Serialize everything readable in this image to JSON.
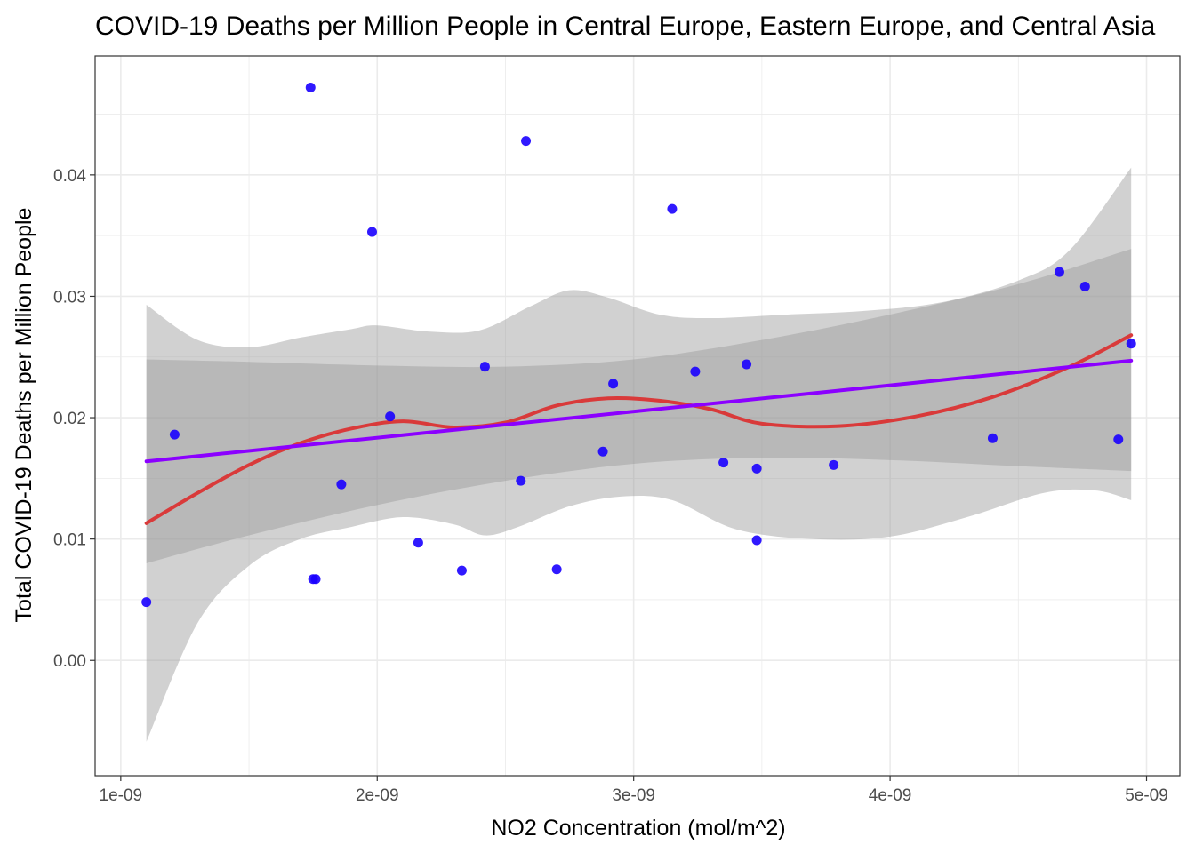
{
  "chart_data": {
    "type": "scatter",
    "title": "COVID-19 Deaths per Million People in Central Europe, Eastern Europe, and Central Asia",
    "xlabel": "NO2 Concentration (mol/m^2)",
    "ylabel": "Total COVID-19 Deaths per Million People",
    "xlim": [
      9e-10,
      5.13e-09
    ],
    "ylim": [
      -0.0095,
      0.0498
    ],
    "x_ticks": [
      1e-09,
      2e-09,
      3e-09,
      4e-09,
      5e-09
    ],
    "x_tick_labels": [
      "1e-09",
      "2e-09",
      "3e-09",
      "4e-09",
      "5e-09"
    ],
    "y_ticks": [
      0.0,
      0.01,
      0.02,
      0.03,
      0.04
    ],
    "y_tick_labels": [
      "0.00",
      "0.01",
      "0.02",
      "0.03",
      "0.04"
    ],
    "grid": true,
    "colors": {
      "points": "#1a00ff",
      "linear_fit": "#8b00ff",
      "loess_fit": "#d93a3a",
      "ribbon": "#999999",
      "grid_major": "#ebebeb",
      "panel_border": "#333333"
    },
    "points": [
      {
        "x": 1.1e-09,
        "y": 0.0048
      },
      {
        "x": 1.21e-09,
        "y": 0.0186
      },
      {
        "x": 1.74e-09,
        "y": 0.0472
      },
      {
        "x": 1.75e-09,
        "y": 0.0067
      },
      {
        "x": 1.76e-09,
        "y": 0.0067
      },
      {
        "x": 1.86e-09,
        "y": 0.0145
      },
      {
        "x": 1.98e-09,
        "y": 0.0353
      },
      {
        "x": 2.05e-09,
        "y": 0.0201
      },
      {
        "x": 2.16e-09,
        "y": 0.0097
      },
      {
        "x": 2.33e-09,
        "y": 0.0074
      },
      {
        "x": 2.42e-09,
        "y": 0.0242
      },
      {
        "x": 2.56e-09,
        "y": 0.0148
      },
      {
        "x": 2.58e-09,
        "y": 0.0428
      },
      {
        "x": 2.7e-09,
        "y": 0.0075
      },
      {
        "x": 2.88e-09,
        "y": 0.0172
      },
      {
        "x": 2.92e-09,
        "y": 0.0228
      },
      {
        "x": 3.15e-09,
        "y": 0.0372
      },
      {
        "x": 3.24e-09,
        "y": 0.0238
      },
      {
        "x": 3.35e-09,
        "y": 0.0163
      },
      {
        "x": 3.44e-09,
        "y": 0.0244
      },
      {
        "x": 3.48e-09,
        "y": 0.0158
      },
      {
        "x": 3.48e-09,
        "y": 0.0099
      },
      {
        "x": 3.78e-09,
        "y": 0.0161
      },
      {
        "x": 4.4e-09,
        "y": 0.0183
      },
      {
        "x": 4.66e-09,
        "y": 0.032
      },
      {
        "x": 4.76e-09,
        "y": 0.0308
      },
      {
        "x": 4.89e-09,
        "y": 0.0182
      },
      {
        "x": 4.94e-09,
        "y": 0.0261
      }
    ],
    "linear_fit": {
      "line": [
        {
          "x": 1.1e-09,
          "y": 0.0164
        },
        {
          "x": 4.94e-09,
          "y": 0.0247
        }
      ],
      "upper": [
        {
          "x": 1.1e-09,
          "y": 0.0248
        },
        {
          "x": 1.5e-09,
          "y": 0.0246
        },
        {
          "x": 2e-09,
          "y": 0.0243
        },
        {
          "x": 2.5e-09,
          "y": 0.0242
        },
        {
          "x": 3e-09,
          "y": 0.0248
        },
        {
          "x": 3.5e-09,
          "y": 0.0264
        },
        {
          "x": 4e-09,
          "y": 0.0285
        },
        {
          "x": 4.5e-09,
          "y": 0.031
        },
        {
          "x": 4.94e-09,
          "y": 0.0339
        }
      ],
      "lower": [
        {
          "x": 1.1e-09,
          "y": 0.008
        },
        {
          "x": 1.5e-09,
          "y": 0.0103
        },
        {
          "x": 2e-09,
          "y": 0.0128
        },
        {
          "x": 2.5e-09,
          "y": 0.0148
        },
        {
          "x": 3e-09,
          "y": 0.0162
        },
        {
          "x": 3.5e-09,
          "y": 0.0167
        },
        {
          "x": 4e-09,
          "y": 0.0165
        },
        {
          "x": 4.5e-09,
          "y": 0.016
        },
        {
          "x": 4.94e-09,
          "y": 0.0156
        }
      ]
    },
    "loess_fit": {
      "line": [
        {
          "x": 1.1e-09,
          "y": 0.0113
        },
        {
          "x": 1.3e-09,
          "y": 0.0138
        },
        {
          "x": 1.5e-09,
          "y": 0.0161
        },
        {
          "x": 1.7e-09,
          "y": 0.0179
        },
        {
          "x": 1.9e-09,
          "y": 0.0191
        },
        {
          "x": 2.1e-09,
          "y": 0.0197
        },
        {
          "x": 2.3e-09,
          "y": 0.0192
        },
        {
          "x": 2.5e-09,
          "y": 0.0196
        },
        {
          "x": 2.7e-09,
          "y": 0.021
        },
        {
          "x": 2.9e-09,
          "y": 0.0216
        },
        {
          "x": 3.1e-09,
          "y": 0.0214
        },
        {
          "x": 3.3e-09,
          "y": 0.0207
        },
        {
          "x": 3.5e-09,
          "y": 0.0195
        },
        {
          "x": 3.8e-09,
          "y": 0.0193
        },
        {
          "x": 4.1e-09,
          "y": 0.0201
        },
        {
          "x": 4.4e-09,
          "y": 0.0217
        },
        {
          "x": 4.7e-09,
          "y": 0.0242
        },
        {
          "x": 4.94e-09,
          "y": 0.0268
        }
      ],
      "upper": [
        {
          "x": 1.1e-09,
          "y": 0.0293
        },
        {
          "x": 1.3e-09,
          "y": 0.0264
        },
        {
          "x": 1.5e-09,
          "y": 0.0258
        },
        {
          "x": 1.7e-09,
          "y": 0.0266
        },
        {
          "x": 1.9e-09,
          "y": 0.0273
        },
        {
          "x": 2e-09,
          "y": 0.0276
        },
        {
          "x": 2.2e-09,
          "y": 0.0271
        },
        {
          "x": 2.4e-09,
          "y": 0.0272
        },
        {
          "x": 2.6e-09,
          "y": 0.0292
        },
        {
          "x": 2.75e-09,
          "y": 0.0305
        },
        {
          "x": 2.9e-09,
          "y": 0.0299
        },
        {
          "x": 3.1e-09,
          "y": 0.0285
        },
        {
          "x": 3.3e-09,
          "y": 0.0282
        },
        {
          "x": 3.6e-09,
          "y": 0.0285
        },
        {
          "x": 3.9e-09,
          "y": 0.0288
        },
        {
          "x": 4.2e-09,
          "y": 0.0295
        },
        {
          "x": 4.5e-09,
          "y": 0.0313
        },
        {
          "x": 4.7e-09,
          "y": 0.0338
        },
        {
          "x": 4.94e-09,
          "y": 0.0406
        }
      ],
      "lower": [
        {
          "x": 1.1e-09,
          "y": -0.0067
        },
        {
          "x": 1.3e-09,
          "y": 0.0031
        },
        {
          "x": 1.5e-09,
          "y": 0.0078
        },
        {
          "x": 1.7e-09,
          "y": 0.01
        },
        {
          "x": 1.9e-09,
          "y": 0.011
        },
        {
          "x": 2.1e-09,
          "y": 0.0118
        },
        {
          "x": 2.3e-09,
          "y": 0.0112
        },
        {
          "x": 2.42e-09,
          "y": 0.0103
        },
        {
          "x": 2.55e-09,
          "y": 0.011
        },
        {
          "x": 2.75e-09,
          "y": 0.0127
        },
        {
          "x": 2.95e-09,
          "y": 0.0135
        },
        {
          "x": 3.15e-09,
          "y": 0.0132
        },
        {
          "x": 3.4e-09,
          "y": 0.0108
        },
        {
          "x": 3.7e-09,
          "y": 0.01
        },
        {
          "x": 4e-09,
          "y": 0.0102
        },
        {
          "x": 4.3e-09,
          "y": 0.0118
        },
        {
          "x": 4.6e-09,
          "y": 0.0138
        },
        {
          "x": 4.8e-09,
          "y": 0.014
        },
        {
          "x": 4.94e-09,
          "y": 0.0132
        }
      ]
    }
  }
}
